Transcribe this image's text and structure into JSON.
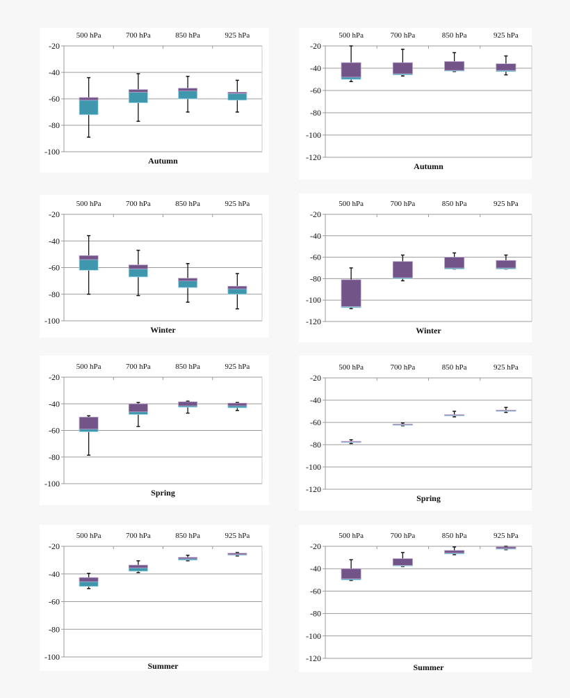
{
  "colors": {
    "upper_box": "#725489",
    "lower_box": "#3f97ad",
    "whisker": "#111111",
    "grid": "#999999"
  },
  "chart_data": [
    {
      "type": "boxplot",
      "title": "Autumn",
      "column": "left",
      "categories": [
        "500 hPa",
        "700 hPa",
        "850 hPa",
        "925 hPa"
      ],
      "ylim": [
        -100,
        -20
      ],
      "yticks": [
        -20,
        -40,
        -60,
        -80,
        -100
      ],
      "grid": true,
      "boxes": [
        {
          "max": -44,
          "q3": -59,
          "median": -61,
          "q1": -72,
          "min": -89
        },
        {
          "max": -41,
          "q3": -53,
          "median": -55,
          "q1": -63,
          "min": -77
        },
        {
          "max": -43,
          "q3": -52,
          "median": -54,
          "q1": -60,
          "min": -70
        },
        {
          "max": -46,
          "q3": -55,
          "median": -56,
          "q1": -61,
          "min": -70
        }
      ]
    },
    {
      "type": "boxplot",
      "title": "Autumn",
      "column": "right",
      "categories": [
        "500 hPa",
        "700 hPa",
        "850 hPa",
        "925 hPa"
      ],
      "ylim": [
        -120,
        -20
      ],
      "yticks": [
        -20,
        -40,
        -60,
        -80,
        -100,
        -120
      ],
      "grid": true,
      "boxes": [
        {
          "max": -20,
          "q3": -35,
          "median": -48,
          "q1": -50,
          "min": -52
        },
        {
          "max": -23,
          "q3": -35,
          "median": -45,
          "q1": -46,
          "min": -47
        },
        {
          "max": -26,
          "q3": -34,
          "median": -42,
          "q1": -42.5,
          "min": -43
        },
        {
          "max": -29,
          "q3": -36,
          "median": -42,
          "q1": -43,
          "min": -46
        }
      ]
    },
    {
      "type": "boxplot",
      "title": "Winter",
      "column": "left",
      "categories": [
        "500 hPa",
        "700 hPa",
        "850 hPa",
        "925 hPa"
      ],
      "ylim": [
        -100,
        -20
      ],
      "yticks": [
        -20,
        -40,
        -60,
        -80,
        -100
      ],
      "grid": true,
      "boxes": [
        {
          "max": -36,
          "q3": -51,
          "median": -54,
          "q1": -62,
          "min": -80
        },
        {
          "max": -47,
          "q3": -58,
          "median": -61,
          "q1": -67,
          "min": -81
        },
        {
          "max": -57,
          "q3": -68,
          "median": -70,
          "q1": -75,
          "min": -86
        },
        {
          "max": -64.5,
          "q3": -74,
          "median": -76,
          "q1": -80,
          "min": -91
        }
      ]
    },
    {
      "type": "boxplot",
      "title": "Winter",
      "column": "right",
      "categories": [
        "500 hPa",
        "700 hPa",
        "850 hPa",
        "925 hPa"
      ],
      "ylim": [
        -120,
        -20
      ],
      "yticks": [
        -20,
        -40,
        -60,
        -80,
        -100,
        -120
      ],
      "grid": true,
      "boxes": [
        {
          "max": -70,
          "q3": -81,
          "median": -106,
          "q1": -107,
          "min": -108
        },
        {
          "max": -58,
          "q3": -64,
          "median": -79,
          "q1": -80,
          "min": -82
        },
        {
          "max": -56,
          "q3": -60,
          "median": -70,
          "q1": -71,
          "min": -71
        },
        {
          "max": -58,
          "q3": -63,
          "median": -70,
          "q1": -71,
          "min": -71
        }
      ]
    },
    {
      "type": "boxplot",
      "title": "Spring",
      "column": "left",
      "categories": [
        "500 hPa",
        "700 hPa",
        "850 hPa",
        "925 hPa"
      ],
      "ylim": [
        -100,
        -20
      ],
      "yticks": [
        -20,
        -40,
        -60,
        -80,
        -100
      ],
      "grid": true,
      "boxes": [
        {
          "max": -49,
          "q3": -50,
          "median": -59,
          "q1": -61,
          "min": -78.6
        },
        {
          "max": -39,
          "q3": -40,
          "median": -46,
          "q1": -48,
          "min": -57
        },
        {
          "max": -38,
          "q3": -38.5,
          "median": -41.5,
          "q1": -42.5,
          "min": -47
        },
        {
          "max": -39,
          "q3": -39.5,
          "median": -41.5,
          "q1": -43,
          "min": -45
        }
      ]
    },
    {
      "type": "boxplot",
      "title": "Spring",
      "column": "right",
      "categories": [
        "500 hPa",
        "700 hPa",
        "850 hPa",
        "925 hPa"
      ],
      "ylim": [
        -120,
        -20
      ],
      "yticks": [
        -20,
        -40,
        -60,
        -80,
        -100,
        -120
      ],
      "grid": true,
      "boxes": [
        {
          "max": -75.6,
          "q3": -77,
          "median": -77.5,
          "q1": -78,
          "min": -79
        },
        {
          "max": -60.5,
          "q3": -61.5,
          "median": -62,
          "q1": -62.5,
          "min": -63
        },
        {
          "max": -50,
          "q3": -53,
          "median": -53.5,
          "q1": -54,
          "min": -55
        },
        {
          "max": -46.5,
          "q3": -49,
          "median": -49.5,
          "q1": -50,
          "min": -51
        }
      ]
    },
    {
      "type": "boxplot",
      "title": "Summer",
      "column": "left",
      "categories": [
        "500 hPa",
        "700 hPa",
        "850 hPa",
        "925 hPa"
      ],
      "ylim": [
        -100,
        -20
      ],
      "yticks": [
        -20,
        -40,
        -60,
        -80,
        -100
      ],
      "grid": true,
      "boxes": [
        {
          "max": -39.6,
          "q3": -42.6,
          "median": -45.6,
          "q1": -49,
          "min": -50.6
        },
        {
          "max": -30.5,
          "q3": -33.6,
          "median": -35.6,
          "q1": -38,
          "min": -39
        },
        {
          "max": -26.5,
          "q3": -28,
          "median": -29,
          "q1": -30,
          "min": -30.5
        },
        {
          "max": -24.5,
          "q3": -25,
          "median": -26,
          "q1": -26.5,
          "min": -27
        }
      ]
    },
    {
      "type": "boxplot",
      "title": "Summer",
      "column": "right",
      "categories": [
        "500 hPa",
        "700 hPa",
        "850 hPa",
        "925 hPa"
      ],
      "ylim": [
        -120,
        -20
      ],
      "yticks": [
        -20,
        -40,
        -60,
        -80,
        -100,
        -120
      ],
      "grid": true,
      "boxes": [
        {
          "max": -32,
          "q3": -40,
          "median": -49,
          "q1": -50,
          "min": -50.5
        },
        {
          "max": -25.6,
          "q3": -31,
          "median": -37,
          "q1": -37.5,
          "min": -38
        },
        {
          "max": -20.6,
          "q3": -23.7,
          "median": -26,
          "q1": -26.8,
          "min": -27.5
        },
        {
          "max": -20,
          "q3": -20.6,
          "median": -22,
          "q1": -22.5,
          "min": -23
        }
      ]
    }
  ]
}
